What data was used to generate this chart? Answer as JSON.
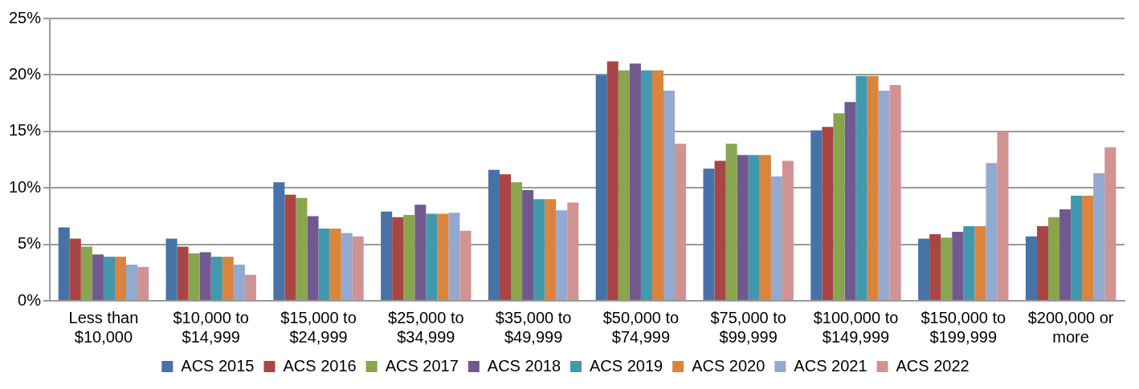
{
  "chart_data": {
    "type": "bar",
    "categories": [
      "Less than $10,000",
      "$10,000 to $14,999",
      "$15,000 to $24,999",
      "$25,000 to $34,999",
      "$35,000 to $49,999",
      "$50,000 to $74,999",
      "$75,000 to $99,999",
      "$100,000 to $149,999",
      "$150,000 to $199,999",
      "$200,000 or more"
    ],
    "series": [
      {
        "name": "ACS 2015",
        "color": "#4672a8",
        "values": [
          6.5,
          5.5,
          10.5,
          7.9,
          11.6,
          20.0,
          11.7,
          15.1,
          5.5,
          5.7
        ]
      },
      {
        "name": "ACS 2016",
        "color": "#a94545",
        "values": [
          5.5,
          4.8,
          9.4,
          7.4,
          11.2,
          21.2,
          12.4,
          15.4,
          5.9,
          6.6
        ]
      },
      {
        "name": "ACS 2017",
        "color": "#89a54e",
        "values": [
          4.8,
          4.2,
          9.1,
          7.6,
          10.5,
          20.4,
          13.9,
          16.6,
          5.6,
          7.4
        ]
      },
      {
        "name": "ACS 2018",
        "color": "#71598f",
        "values": [
          4.1,
          4.3,
          7.5,
          8.5,
          9.8,
          21.0,
          12.9,
          17.6,
          6.1,
          8.1
        ]
      },
      {
        "name": "ACS 2019",
        "color": "#4298ae",
        "values": [
          3.9,
          3.9,
          6.4,
          7.7,
          9.0,
          20.4,
          12.9,
          19.9,
          6.6,
          9.3
        ]
      },
      {
        "name": "ACS 2020",
        "color": "#db843d",
        "values": [
          3.9,
          3.9,
          6.4,
          7.7,
          9.0,
          20.4,
          12.9,
          19.9,
          6.6,
          9.3
        ]
      },
      {
        "name": "ACS 2021",
        "color": "#93a9cf",
        "values": [
          3.2,
          3.2,
          6.0,
          7.8,
          8.0,
          18.6,
          11.0,
          18.6,
          12.2,
          11.3
        ]
      },
      {
        "name": "ACS 2022",
        "color": "#d19392",
        "values": [
          3.0,
          2.3,
          5.7,
          6.2,
          8.7,
          13.9,
          12.4,
          19.1,
          15.0,
          13.6
        ]
      }
    ],
    "ylim": [
      0,
      25
    ],
    "yticks": [
      {
        "value": 0,
        "label": "0%"
      },
      {
        "value": 5,
        "label": "5%"
      },
      {
        "value": 10,
        "label": "10%"
      },
      {
        "value": 15,
        "label": "15%"
      },
      {
        "value": 20,
        "label": "20%"
      },
      {
        "value": 25,
        "label": "25%"
      }
    ],
    "grid": "y",
    "legend": "bottom"
  }
}
